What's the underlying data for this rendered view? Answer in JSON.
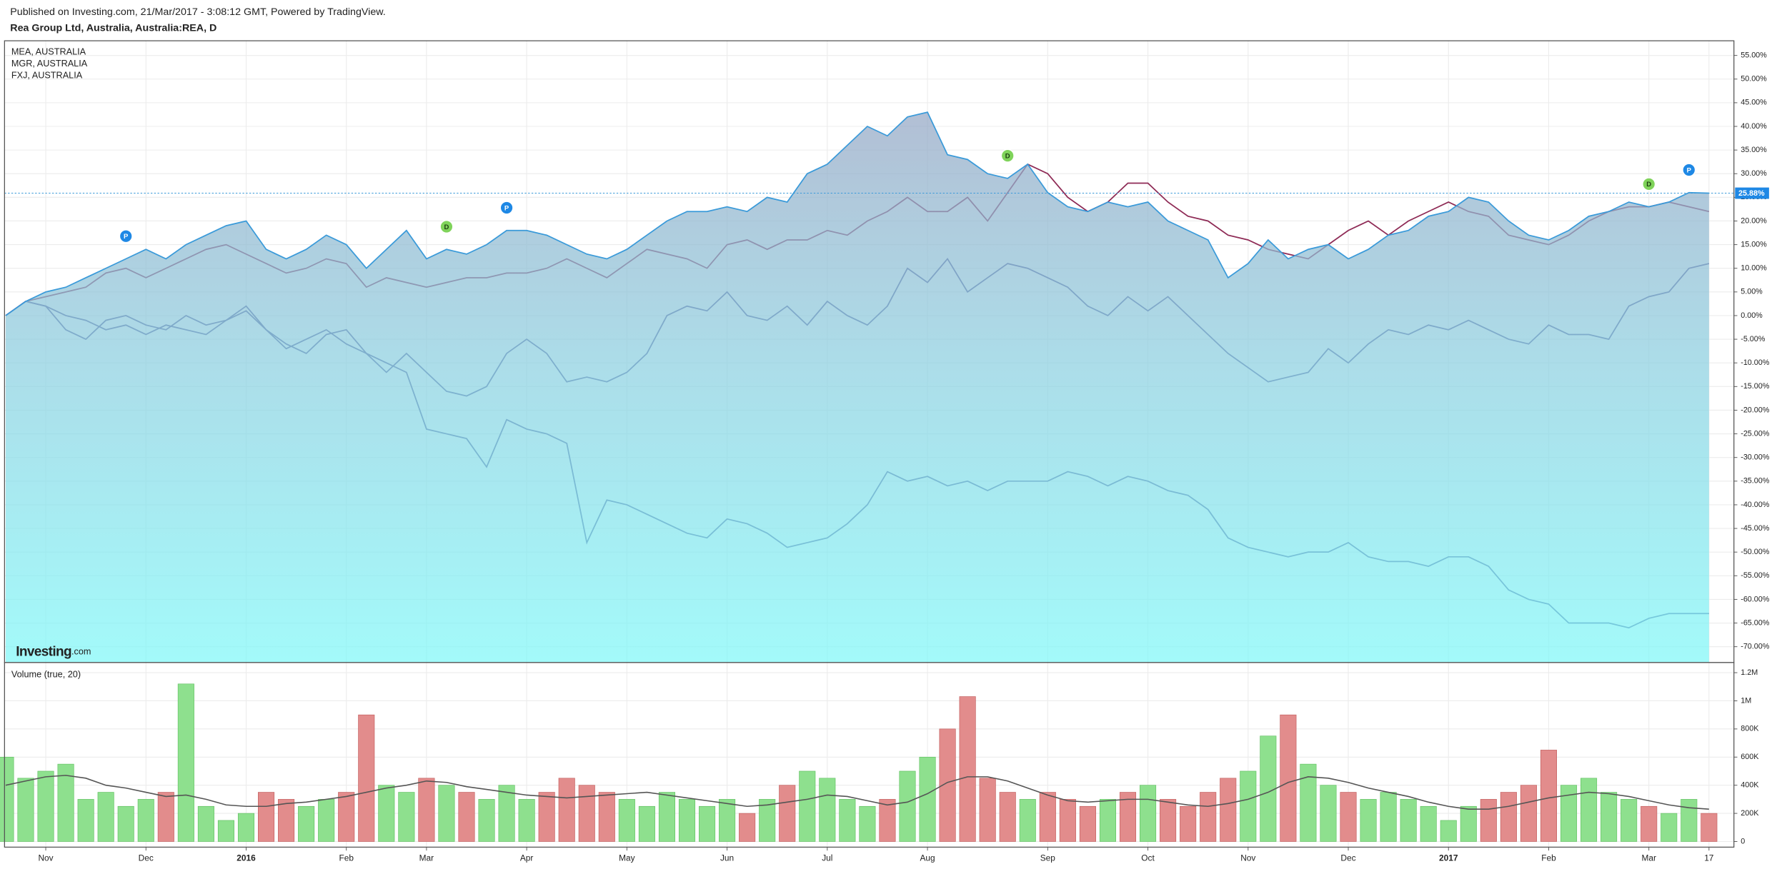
{
  "chart_data": [
    {
      "type": "area",
      "subtitle": "Published on Investing.com, 21/Mar/2017 - 3:08:12 GMT, Powered by TradingView.",
      "title": "Rea Group Ltd, Australia, Australia:REA, D",
      "watermark": {
        "brand": "Investing",
        "domain": ".com"
      },
      "categories": [
        null,
        null,
        "Nov",
        null,
        null,
        null,
        null,
        "Dec",
        null,
        null,
        null,
        null,
        "2016",
        null,
        null,
        null,
        null,
        "Feb",
        null,
        null,
        null,
        "Mar",
        null,
        null,
        null,
        null,
        "Apr",
        null,
        null,
        null,
        null,
        "May",
        null,
        null,
        null,
        null,
        "Jun",
        null,
        null,
        null,
        null,
        "Jul",
        null,
        null,
        null,
        null,
        "Aug",
        null,
        null,
        null,
        null,
        null,
        "Sep",
        null,
        null,
        null,
        null,
        "Oct",
        null,
        null,
        null,
        null,
        "Nov",
        null,
        null,
        null,
        null,
        "Dec",
        null,
        null,
        null,
        null,
        "2017",
        null,
        null,
        null,
        null,
        "Feb",
        null,
        null,
        null,
        null,
        "Mar",
        null,
        null,
        "17"
      ],
      "series": [
        {
          "type": "area",
          "color": "#3a9ad9",
          "values": [
            0,
            3,
            5,
            6,
            8,
            10,
            12,
            14,
            12,
            15,
            17,
            19,
            20,
            14,
            12,
            14,
            17,
            15,
            10,
            14,
            18,
            12,
            14,
            13,
            15,
            18,
            18,
            17,
            15,
            13,
            12,
            14,
            17,
            20,
            22,
            22,
            23,
            22,
            25,
            24,
            30,
            32,
            36,
            40,
            38,
            42,
            43,
            34,
            33,
            30,
            29,
            32,
            26,
            23,
            22,
            24,
            23,
            24,
            20,
            18,
            16,
            8,
            11,
            16,
            12,
            14,
            15,
            12,
            14,
            17,
            18,
            21,
            22,
            25,
            24,
            20,
            17,
            16,
            18,
            21,
            22,
            24,
            23,
            24,
            26,
            25.88
          ],
          "value_labels": [
            null,
            null,
            null,
            null,
            null,
            null,
            null,
            null,
            null,
            null,
            null,
            null,
            null,
            null,
            null,
            null,
            null,
            null,
            null,
            null,
            null,
            null,
            null,
            null,
            null,
            null,
            null,
            null,
            null,
            null,
            null,
            null,
            null,
            null,
            null,
            null,
            null,
            null,
            null,
            null,
            null,
            null,
            null,
            null,
            null,
            null,
            null,
            null,
            null,
            null,
            null,
            null,
            null,
            null,
            null,
            null,
            null,
            null,
            null,
            null,
            null,
            null,
            null,
            null,
            null,
            null,
            null,
            null,
            null,
            null,
            null,
            null,
            null,
            null,
            null,
            null,
            null,
            null,
            null,
            null,
            null,
            null,
            null,
            null,
            null,
            "25.88%"
          ]
        },
        {
          "type": "line",
          "name": "MEA, AUSTRALIA",
          "color": "#8e2a55",
          "values": [
            0,
            3,
            4,
            5,
            6,
            9,
            10,
            8,
            10,
            12,
            14,
            15,
            13,
            11,
            9,
            10,
            12,
            11,
            6,
            8,
            7,
            6,
            7,
            8,
            8,
            9,
            9,
            10,
            12,
            10,
            8,
            11,
            14,
            13,
            12,
            10,
            15,
            16,
            14,
            16,
            16,
            18,
            17,
            20,
            22,
            25,
            22,
            22,
            25,
            20,
            26,
            32,
            30,
            25,
            22,
            24,
            28,
            28,
            24,
            21,
            20,
            17,
            16,
            14,
            13,
            12,
            15,
            18,
            20,
            17,
            20,
            22,
            24,
            22,
            21,
            17,
            16,
            15,
            17,
            20,
            22,
            23,
            23,
            24,
            23,
            22
          ]
        },
        {
          "type": "line",
          "name": "MGR, AUSTRALIA",
          "color": "#5a5a9c",
          "values": [
            0,
            3,
            2,
            -3,
            -5,
            -1,
            0,
            -2,
            -3,
            0,
            -2,
            -1,
            2,
            -3,
            -6,
            -8,
            -4,
            -3,
            -8,
            -12,
            -8,
            -12,
            -16,
            -17,
            -15,
            -8,
            -5,
            -8,
            -14,
            -13,
            -14,
            -12,
            -8,
            0,
            2,
            1,
            5,
            0,
            -1,
            2,
            -2,
            3,
            0,
            -2,
            2,
            10,
            7,
            12,
            5,
            8,
            11,
            10,
            8,
            6,
            2,
            0,
            4,
            1,
            4,
            0,
            -4,
            -8,
            -11,
            -14,
            -13,
            -12,
            -7,
            -10,
            -6,
            -3,
            -4,
            -2,
            -3,
            -1,
            -3,
            -5,
            -6,
            -2,
            -4,
            -4,
            -5,
            2,
            4,
            5,
            10,
            11
          ]
        },
        {
          "type": "line",
          "name": "FXJ, AUSTRALIA",
          "color": "#5a5a9c",
          "values": [
            0,
            3,
            2,
            0,
            -1,
            -3,
            -2,
            -4,
            -2,
            -3,
            -4,
            -1,
            1,
            -3,
            -7,
            -5,
            -3,
            -6,
            -8,
            -10,
            -12,
            -24,
            -25,
            -26,
            -32,
            -22,
            -24,
            -25,
            -27,
            -48,
            -39,
            -40,
            -42,
            -44,
            -46,
            -47,
            -43,
            -44,
            -46,
            -49,
            -48,
            -47,
            -44,
            -40,
            -33,
            -35,
            -34,
            -36,
            -35,
            -37,
            -35,
            -35,
            -35,
            -33,
            -34,
            -36,
            -34,
            -35,
            -37,
            -38,
            -41,
            -47,
            -49,
            -50,
            -51,
            -50,
            -50,
            -48,
            -51,
            -52,
            -52,
            -53,
            -51,
            -51,
            -53,
            -58,
            -60,
            -61,
            -65,
            -65,
            -65,
            -66,
            -64,
            -63,
            -63,
            -63
          ]
        }
      ],
      "events": [
        null,
        null,
        null,
        null,
        null,
        null,
        "P",
        null,
        null,
        null,
        null,
        null,
        null,
        null,
        null,
        null,
        null,
        null,
        null,
        null,
        null,
        null,
        "D",
        null,
        null,
        "P",
        null,
        null,
        null,
        null,
        null,
        null,
        null,
        null,
        null,
        null,
        null,
        null,
        null,
        null,
        null,
        null,
        null,
        null,
        null,
        null,
        null,
        null,
        null,
        null,
        "D",
        null,
        null,
        null,
        null,
        null,
        null,
        null,
        null,
        null,
        null,
        null,
        null,
        null,
        null,
        null,
        null,
        null,
        null,
        null,
        null,
        null,
        null,
        null,
        null,
        null,
        null,
        null,
        null,
        null,
        null,
        null,
        "D",
        null,
        "P",
        null
      ],
      "event_colors": {
        "P": "#1e88e5",
        "D": "#7fd35a"
      },
      "ylim": [
        -73.35,
        58.1
      ],
      "yticks": [
        {
          "value": 55,
          "label": "55.00%"
        },
        {
          "value": 50,
          "label": "50.00%"
        },
        {
          "value": 45,
          "label": "45.00%"
        },
        {
          "value": 40,
          "label": "40.00%"
        },
        {
          "value": 35,
          "label": "35.00%"
        },
        {
          "value": 30,
          "label": "30.00%"
        },
        {
          "value": 25,
          "label": "25.00%"
        },
        {
          "value": 20,
          "label": "20.00%"
        },
        {
          "value": 15,
          "label": "15.00%"
        },
        {
          "value": 10,
          "label": "10.00%"
        },
        {
          "value": 5,
          "label": "5.00%"
        },
        {
          "value": 0,
          "label": "0.00%"
        },
        {
          "value": -5,
          "label": "-5.00%"
        },
        {
          "value": -10,
          "label": "-10.00%"
        },
        {
          "value": -15,
          "label": "-15.00%"
        },
        {
          "value": -20,
          "label": "-20.00%"
        },
        {
          "value": -25,
          "label": "-25.00%"
        },
        {
          "value": -30,
          "label": "-30.00%"
        },
        {
          "value": -35,
          "label": "-35.00%"
        },
        {
          "value": -40,
          "label": "-40.00%"
        },
        {
          "value": -45,
          "label": "-45.00%"
        },
        {
          "value": -50,
          "label": "-50.00%"
        },
        {
          "value": -55,
          "label": "-55.00%"
        },
        {
          "value": -60,
          "label": "-60.00%"
        },
        {
          "value": -65,
          "label": "-65.00%"
        },
        {
          "value": -70,
          "label": "-70.00%"
        }
      ],
      "grid": true
    },
    {
      "type": "bar",
      "title": "Volume (true, 20)",
      "up_color": "#8ee08e",
      "down_color": "#e28c8c",
      "ma_color": "#555555",
      "values": [
        600000,
        450000,
        500000,
        550000,
        300000,
        350000,
        250000,
        300000,
        350000,
        1120000,
        250000,
        150000,
        200000,
        350000,
        300000,
        250000,
        300000,
        350000,
        900000,
        400000,
        350000,
        450000,
        400000,
        350000,
        300000,
        400000,
        300000,
        350000,
        450000,
        400000,
        350000,
        300000,
        250000,
        350000,
        300000,
        250000,
        300000,
        200000,
        300000,
        400000,
        500000,
        450000,
        300000,
        250000,
        300000,
        500000,
        600000,
        800000,
        1030000,
        450000,
        350000,
        300000,
        350000,
        300000,
        250000,
        300000,
        350000,
        400000,
        300000,
        250000,
        350000,
        450000,
        500000,
        750000,
        900000,
        550000,
        400000,
        350000,
        300000,
        350000,
        300000,
        250000,
        150000,
        250000,
        300000,
        350000,
        400000,
        650000,
        400000,
        450000,
        350000,
        300000,
        250000,
        200000,
        300000,
        200000
      ],
      "ma": [
        400000,
        430000,
        460000,
        470000,
        450000,
        400000,
        380000,
        350000,
        320000,
        330000,
        300000,
        260000,
        250000,
        250000,
        270000,
        280000,
        300000,
        320000,
        350000,
        380000,
        400000,
        430000,
        420000,
        390000,
        370000,
        350000,
        330000,
        320000,
        310000,
        320000,
        330000,
        340000,
        350000,
        330000,
        310000,
        290000,
        270000,
        250000,
        260000,
        280000,
        300000,
        330000,
        320000,
        290000,
        260000,
        280000,
        340000,
        420000,
        460000,
        460000,
        430000,
        380000,
        330000,
        290000,
        280000,
        290000,
        300000,
        300000,
        280000,
        260000,
        250000,
        270000,
        300000,
        350000,
        420000,
        460000,
        450000,
        420000,
        380000,
        350000,
        320000,
        280000,
        250000,
        230000,
        230000,
        250000,
        280000,
        310000,
        330000,
        350000,
        340000,
        320000,
        290000,
        260000,
        240000,
        230000
      ],
      "ylim": [
        -40000,
        1272000
      ],
      "yticks": [
        0,
        {
          "value": 200000,
          "label": "200K"
        },
        {
          "value": 400000,
          "label": "400K"
        },
        {
          "value": 600000,
          "label": "600K"
        },
        {
          "value": 800000,
          "label": "800K"
        },
        {
          "value": 1000000,
          "label": "1M"
        },
        {
          "value": 1200000,
          "label": "1.2M"
        }
      ],
      "grid": true
    }
  ]
}
